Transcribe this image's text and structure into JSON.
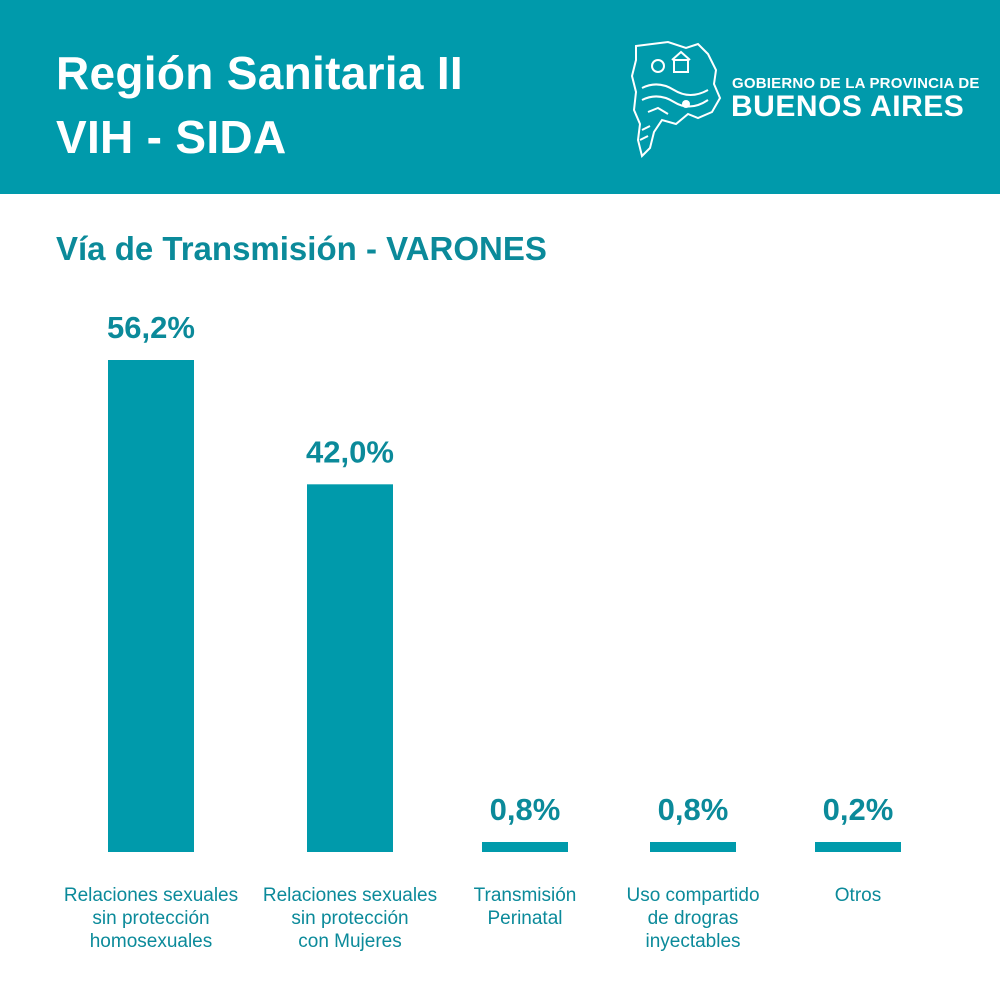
{
  "header": {
    "title_line1": "Región Sanitaria II",
    "title_line2": "VIH - SIDA",
    "logo": {
      "small_text": "GOBIERNO DE LA PROVINCIA DE",
      "big_text": "BUENOS AIRES",
      "icon": "buenos-aires-province-map-icon"
    }
  },
  "colors": {
    "header_bg": "#009aab",
    "bar": "#009aab",
    "text_accent": "#0b8a9a"
  },
  "chart_data": {
    "type": "bar",
    "title": "Vía de Transmisión - VARONES",
    "categories": [
      [
        "Relaciones sexuales",
        "sin protección",
        "homosexuales"
      ],
      [
        "Relaciones sexuales",
        "sin protección",
        "con Mujeres"
      ],
      [
        "Transmisión",
        "Perinatal"
      ],
      [
        "Uso compartido",
        "de drogras",
        "inyectables"
      ],
      [
        "Otros"
      ]
    ],
    "values": [
      56.2,
      42.0,
      0.8,
      0.8,
      0.2
    ],
    "data_labels": [
      "56,2%",
      "42,0%",
      "0,8%",
      "0,8%",
      "0,2%"
    ],
    "unit": "%",
    "grid": false,
    "legend": "none"
  }
}
